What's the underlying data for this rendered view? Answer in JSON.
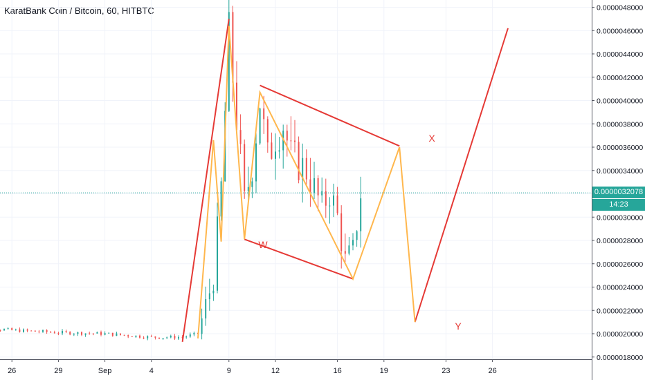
{
  "header": {
    "title": "KaratBank Coin / Bitcoin, 60, HITBTC"
  },
  "colors": {
    "up_candle": "#26a69a",
    "down_candle": "#ef5350",
    "current_price_line": "#26a69a",
    "drawn_trend_lines": "#e53935",
    "drawn_zigzag": "#ffb74d",
    "axis_text": "#131722"
  },
  "price_badge": {
    "last_price": "0.0000032078",
    "countdown": "14:23"
  },
  "chart_data": {
    "type": "candlestick",
    "title": "KaratBank Coin / Bitcoin, 60, HITBTC",
    "x_tick_labels": [
      "26",
      "29",
      "Sep",
      "4",
      "9",
      "12",
      "16",
      "19",
      "23",
      "26"
    ],
    "y_tick_labels": [
      "0.0000048000",
      "0.0000046000",
      "0.0000044000",
      "0.0000042000",
      "0.0000040000",
      "0.0000038000",
      "0.0000036000",
      "0.0000034000",
      "0.0000032000",
      "0.0000030000",
      "0.0000028000",
      "0.0000026000",
      "0.0000024000",
      "0.0000022000",
      "0.0000020000",
      "0.0000018000"
    ],
    "ylim": [
      1.78e-06,
      4.82e-06
    ],
    "grid": true,
    "current_price": 3.2078e-06,
    "price_path": [
      {
        "x": "Aug 23",
        "y": 2.06e-06
      },
      {
        "x": "Aug 26",
        "y": 2.03e-06
      },
      {
        "x": "Aug 29",
        "y": 2.01e-06
      },
      {
        "x": "Sep 1",
        "y": 2e-06
      },
      {
        "x": "Sep 4",
        "y": 1.97e-06
      },
      {
        "x": "Sep 6",
        "y": 1.97e-06
      },
      {
        "x": "Sep 7",
        "y": 2e-06
      },
      {
        "x": "Sep 8",
        "y": 2.48e-06
      },
      {
        "x": "Sep 8 12h",
        "y": 3.25e-06
      },
      {
        "x": "Sep 9",
        "y": 4.55e-06
      },
      {
        "x": "Sep 9 12h",
        "y": 3.85e-06
      },
      {
        "x": "Sep 10",
        "y": 3.12e-06
      },
      {
        "x": "Sep 10 12h",
        "y": 3.45e-06
      },
      {
        "x": "Sep 11",
        "y": 4e-06
      },
      {
        "x": "Sep 11 12h",
        "y": 3.5e-06
      },
      {
        "x": "Sep 12",
        "y": 3.7e-06
      },
      {
        "x": "Sep 12 12h",
        "y": 3.8e-06
      },
      {
        "x": "Sep 13",
        "y": 3.52e-06
      },
      {
        "x": "Sep 14",
        "y": 3.4e-06
      },
      {
        "x": "Sep 15",
        "y": 3.08e-06
      },
      {
        "x": "Sep 15 12h",
        "y": 3.22e-06
      },
      {
        "x": "Sep 16",
        "y": 3e-06
      },
      {
        "x": "Sep 16 12h",
        "y": 2.62e-06
      },
      {
        "x": "Sep 17",
        "y": 2.7e-06
      },
      {
        "x": "Sep 17 12h",
        "y": 3.21e-06
      }
    ],
    "annotations": [
      {
        "label": "W",
        "kind": "wave-label",
        "color": "#e53935"
      },
      {
        "label": "X",
        "kind": "wave-label",
        "color": "#e53935"
      },
      {
        "label": "Y",
        "kind": "wave-label",
        "color": "#e53935"
      }
    ],
    "drawn_lines": [
      {
        "kind": "trend",
        "from": {
          "x": "Sep 6",
          "y": 1.93e-06
        },
        "to": {
          "x": "Sep 9",
          "y": 4.7e-06
        }
      },
      {
        "kind": "trend",
        "from": {
          "x": "Sep 11",
          "y": 4.13e-06
        },
        "to": {
          "x": "Sep 20",
          "y": 3.61e-06
        }
      },
      {
        "kind": "trend",
        "from": {
          "x": "Sep 10",
          "y": 2.81e-06
        },
        "to": {
          "x": "Sep 17",
          "y": 2.47e-06
        }
      },
      {
        "kind": "trend",
        "from": {
          "x": "Sep 21",
          "y": 2.1e-06
        },
        "to": {
          "x": "Sep 27",
          "y": 4.62e-06
        }
      },
      {
        "kind": "zigzag",
        "points": [
          {
            "x": "Sep 7",
            "y": 1.96e-06
          },
          {
            "x": "Sep 8",
            "y": 3.66e-06
          },
          {
            "x": "Sep 8 12h",
            "y": 2.79e-06
          },
          {
            "x": "Sep 9",
            "y": 4.64e-06
          },
          {
            "x": "Sep 10",
            "y": 2.81e-06
          },
          {
            "x": "Sep 11",
            "y": 4.07e-06
          },
          {
            "x": "Sep 17",
            "y": 2.47e-06
          },
          {
            "x": "Sep 20",
            "y": 3.6e-06
          },
          {
            "x": "Sep 21",
            "y": 2.1e-06
          }
        ]
      }
    ]
  }
}
